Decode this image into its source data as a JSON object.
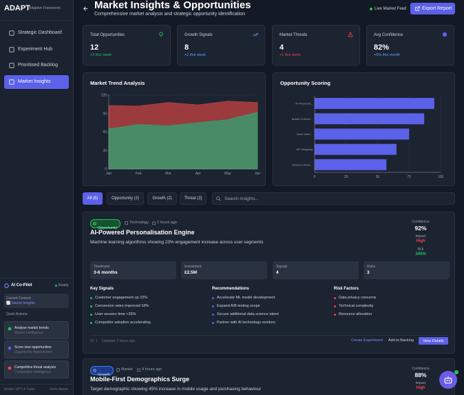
{
  "sidebar": {
    "brand": "ADAPT",
    "tagline": "Adaptive Framework",
    "nav": [
      "Strategic Dashboard",
      "Experiment Hub",
      "Prioritised Backlog",
      "Market Insights"
    ],
    "copilot": {
      "title": "AI Co-Pilot",
      "status": "Ready",
      "context_label": "Current Context:",
      "context": "📈 Market Insights",
      "quick_actions_label": "Quick Actions:",
      "actions": [
        {
          "title": "Analyse market trends",
          "subtitle": "Market Intelligence"
        },
        {
          "title": "Score new opportunities",
          "subtitle": "Opportunity Assessment"
        },
        {
          "title": "Competitive threat analysis",
          "subtitle": "Competitive Intelligence"
        }
      ]
    },
    "footer": {
      "model": "Model: GPT-4 Turbo",
      "role": "Role-Aware"
    }
  },
  "header": {
    "title": "Market Insights & Opportunities",
    "subtitle": "Comprehensive market analysis and strategic opportunity identification",
    "feed": "Live Market Feed",
    "export": "Export Report"
  },
  "stats": [
    {
      "label": "Total Opportunities",
      "value": "12",
      "delta": "+3 this week"
    },
    {
      "label": "Growth Signals",
      "value": "8",
      "delta": "+2 this week"
    },
    {
      "label": "Market Threats",
      "value": "4",
      "delta": "+1 this week"
    },
    {
      "label": "Avg Confidence",
      "value": "82%",
      "delta": "+5% this month"
    }
  ],
  "charts": [
    {
      "type": "area",
      "title": "Market Trend Analysis",
      "categories": [
        "Jan",
        "Feb",
        "Mar",
        "Apr",
        "May",
        "Jun"
      ],
      "series": [
        {
          "color": "#b23f3f",
          "values": [
            103,
            102,
            108,
            104,
            110,
            108
          ]
        },
        {
          "color": "#3a9a6c",
          "values": [
            65,
            72,
            70,
            75,
            80,
            92
          ]
        }
      ],
      "ylim": [
        0,
        120
      ],
      "yticks": [
        0,
        30,
        60,
        90,
        120
      ],
      "grid": true
    },
    {
      "type": "bar",
      "title": "Opportunity Scoring",
      "orientation": "horizontal",
      "categories": [
        "AI Personali...",
        "Mobile Comme...",
        "Voice Interf...",
        "AR Shopping",
        "Social Comme..."
      ],
      "values": [
        95,
        87,
        75,
        65,
        57
      ],
      "color": "#5b61e8",
      "xlim": [
        0,
        100
      ],
      "xticks": [
        0,
        25,
        50,
        75,
        100
      ],
      "grid": true
    }
  ],
  "filters": [
    "All (6)",
    "Opportunity (2)",
    "Growth (2)",
    "Threat (2)"
  ],
  "search_placeholder": "Search insights...",
  "insights": [
    {
      "tag": "Opportunity",
      "category": "Technology",
      "time": "2 hours ago",
      "title": "AI-Powered Personalisation Engine",
      "description": "Machine learning algorithms showing 23% engagement increase across user segments",
      "confidence_label": "Confidence",
      "confidence": "92%",
      "impact_label": "Impact",
      "impact": "High",
      "roi_label": "ROI",
      "roi": "340%",
      "metrics": [
        {
          "label": "Timeframe",
          "value": "3-6 months"
        },
        {
          "label": "Investment",
          "value": "£2.5M"
        },
        {
          "label": "Signals",
          "value": "4"
        },
        {
          "label": "Risks",
          "value": "3"
        }
      ],
      "sections": [
        {
          "title": "Key Signals",
          "items": [
            "Customer engagement up 23%",
            "Conversion rates improved 18%",
            "User session time +35%",
            "Competitor adoption accelerating"
          ]
        },
        {
          "title": "Recommendations",
          "items": [
            "Accelerate ML model development",
            "Expand A/B testing scope",
            "Secure additional data science talent",
            "Partner with AI technology vendors"
          ]
        },
        {
          "title": "Risk Factors",
          "items": [
            "Data privacy concerns",
            "Technical complexity",
            "Resource allocation"
          ]
        }
      ],
      "id": "ID: 1",
      "updated": "Updated: 2 hours ago",
      "actions": [
        "Create Experiment",
        "Add to Backlog",
        "View Details"
      ]
    },
    {
      "tag": "Growth",
      "category": "Market",
      "time": "4 hours ago",
      "title": "Mobile-First Demographics Surge",
      "description": "Target demographic showing 45% increase in mobile usage and purchasing behaviour",
      "confidence_label": "Confidence",
      "confidence": "88%",
      "impact_label": "Impact",
      "impact": "High"
    }
  ]
}
